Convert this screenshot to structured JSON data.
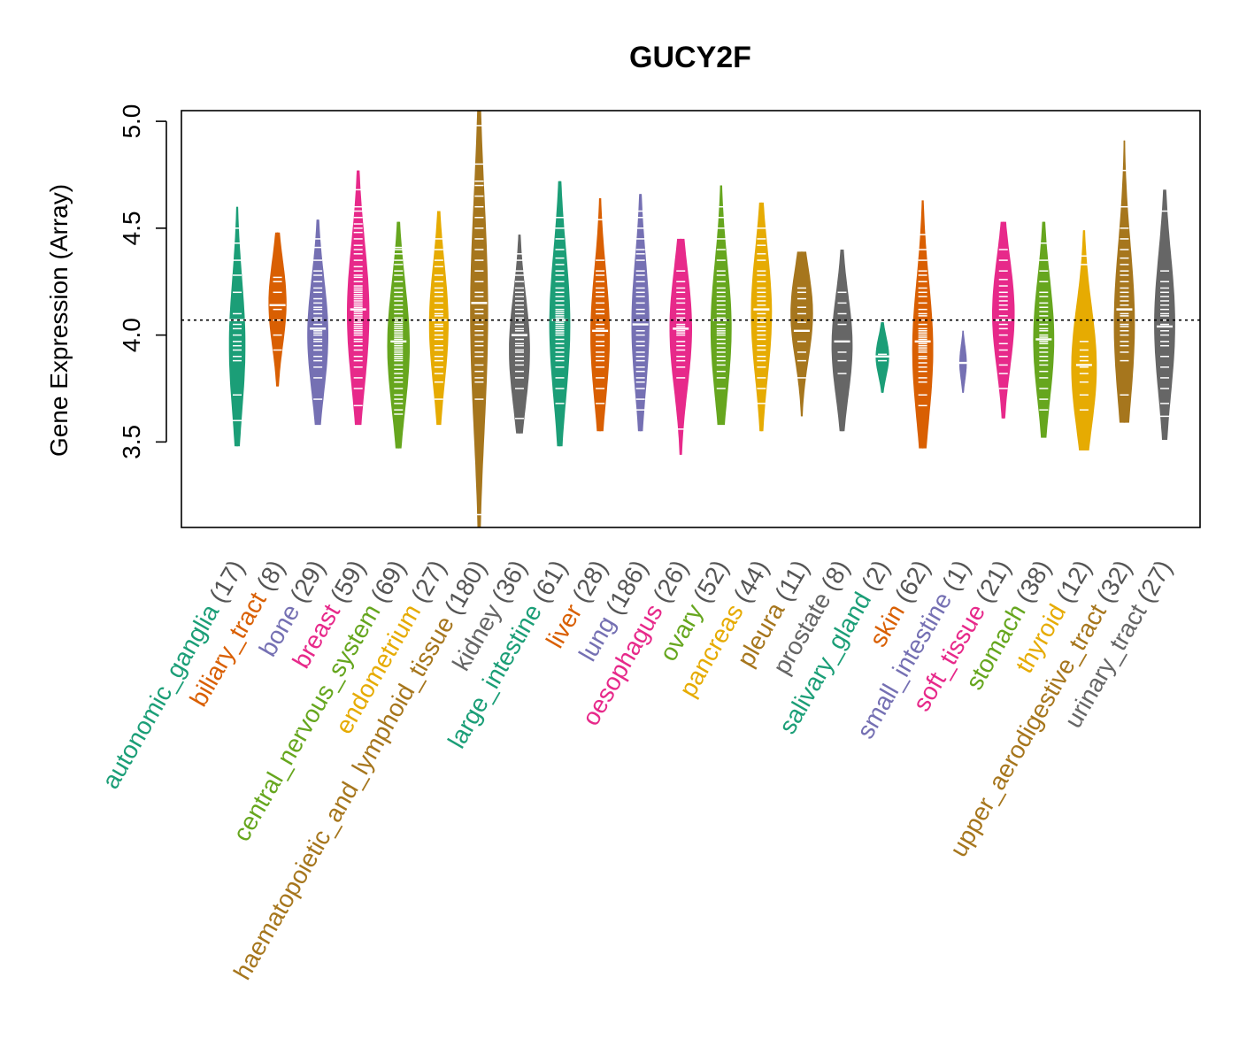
{
  "chart_data": {
    "type": "beanplot",
    "title": "GUCY2F",
    "ylabel": "Gene Expression (Array)",
    "xlabel": "",
    "ylim": [
      3.1,
      5.05
    ],
    "yticks": [
      3.5,
      4.0,
      4.5,
      5.0
    ],
    "ytick_labels": [
      "3.5",
      "4.0",
      "4.5",
      "5.0"
    ],
    "reference_line": 4.07,
    "grid": false,
    "series": [
      {
        "name": "autonomic_ganglia",
        "n": 17,
        "label_count": "(17)",
        "color": "#1B9E77",
        "min": 3.48,
        "max": 4.6,
        "median": 4.07,
        "mode": 3.95,
        "width": 0.55,
        "points": [
          3.6,
          3.72,
          3.88,
          3.9,
          3.93,
          3.95,
          3.97,
          4.0,
          4.03,
          4.05,
          4.07,
          4.1,
          4.2,
          4.28,
          4.35,
          4.43,
          4.5
        ]
      },
      {
        "name": "biliary_tract",
        "n": 8,
        "label_count": "(8)",
        "color": "#D95F02",
        "min": 3.76,
        "max": 4.48,
        "median": 4.14,
        "mode": 4.15,
        "width": 0.6,
        "points": [
          3.93,
          4.0,
          4.07,
          4.12,
          4.14,
          4.2,
          4.25,
          4.27
        ]
      },
      {
        "name": "bone",
        "n": 29,
        "label_count": "(29)",
        "color": "#7570B3",
        "min": 3.58,
        "max": 4.54,
        "median": 4.03,
        "mode": 4.0,
        "width": 0.7,
        "points": [
          3.7,
          3.8,
          3.85,
          3.88,
          3.9,
          3.93,
          3.95,
          3.97,
          3.98,
          4.0,
          4.01,
          4.02,
          4.03,
          4.05,
          4.07,
          4.08,
          4.1,
          4.12,
          4.13,
          4.15,
          4.17,
          4.2,
          4.22,
          4.25,
          4.28,
          4.3,
          4.35,
          4.41,
          4.45
        ]
      },
      {
        "name": "breast",
        "n": 59,
        "label_count": "(59)",
        "color": "#E7298A",
        "min": 3.58,
        "max": 4.77,
        "median": 4.12,
        "mode": 4.1,
        "width": 0.75,
        "points": [
          3.67,
          3.75,
          3.8,
          3.85,
          3.88,
          3.9,
          3.93,
          3.95,
          3.97,
          3.98,
          4.0,
          4.01,
          4.02,
          4.03,
          4.04,
          4.05,
          4.06,
          4.07,
          4.08,
          4.09,
          4.1,
          4.11,
          4.12,
          4.13,
          4.14,
          4.15,
          4.16,
          4.17,
          4.18,
          4.19,
          4.2,
          4.21,
          4.22,
          4.23,
          4.25,
          4.27,
          4.28,
          4.3,
          4.32,
          4.35,
          4.38,
          4.4,
          4.42,
          4.45,
          4.48,
          4.5,
          4.52,
          4.55,
          4.58,
          4.6,
          4.68
        ]
      },
      {
        "name": "central_nervous_system",
        "n": 69,
        "label_count": "(69)",
        "color": "#66A61E",
        "min": 3.47,
        "max": 4.53,
        "median": 3.97,
        "mode": 3.95,
        "width": 0.75,
        "points": [
          3.63,
          3.65,
          3.68,
          3.7,
          3.72,
          3.75,
          3.78,
          3.8,
          3.82,
          3.84,
          3.86,
          3.88,
          3.89,
          3.9,
          3.91,
          3.92,
          3.93,
          3.94,
          3.95,
          3.96,
          3.97,
          3.98,
          3.99,
          4.0,
          4.01,
          4.02,
          4.03,
          4.04,
          4.05,
          4.06,
          4.07,
          4.08,
          4.1,
          4.12,
          4.14,
          4.16,
          4.18,
          4.2,
          4.22,
          4.25,
          4.28,
          4.3,
          4.33,
          4.35,
          4.38,
          4.4,
          4.41
        ]
      },
      {
        "name": "endometrium",
        "n": 27,
        "label_count": "(27)",
        "color": "#E6AB02",
        "min": 3.58,
        "max": 4.58,
        "median": 4.07,
        "mode": 4.05,
        "width": 0.65,
        "points": [
          3.7,
          3.78,
          3.82,
          3.85,
          3.88,
          3.9,
          3.93,
          3.95,
          3.98,
          4.0,
          4.02,
          4.04,
          4.05,
          4.07,
          4.09,
          4.1,
          4.12,
          4.15,
          4.18,
          4.2,
          4.22,
          4.25,
          4.28,
          4.32,
          4.35,
          4.4,
          4.45
        ]
      },
      {
        "name": "haematopoietic_and_lymphoid_tissue",
        "n": 180,
        "label_count": "(180)",
        "color": "#A6761D",
        "min": 3.1,
        "max": 5.05,
        "median": 4.15,
        "mode": 4.1,
        "width": 0.6,
        "points": [
          3.16,
          3.7,
          3.78,
          3.8,
          3.83,
          3.86,
          3.9,
          3.92,
          3.95,
          3.97,
          4.0,
          4.02,
          4.05,
          4.07,
          4.1,
          4.12,
          4.15,
          4.18,
          4.2,
          4.25,
          4.3,
          4.35,
          4.4,
          4.45,
          4.5,
          4.55,
          4.6,
          4.65,
          4.7,
          4.72,
          4.8,
          4.98
        ]
      },
      {
        "name": "kidney",
        "n": 36,
        "label_count": "(36)",
        "color": "#666666",
        "min": 3.54,
        "max": 4.47,
        "median": 4.0,
        "mode": 3.93,
        "width": 0.7,
        "points": [
          3.61,
          3.75,
          3.8,
          3.83,
          3.86,
          3.88,
          3.9,
          3.92,
          3.93,
          3.95,
          3.96,
          3.98,
          4.0,
          4.02,
          4.03,
          4.05,
          4.07,
          4.08,
          4.1,
          4.12,
          4.14,
          4.16,
          4.18,
          4.2,
          4.22,
          4.25,
          4.28,
          4.3,
          4.35,
          4.38
        ]
      },
      {
        "name": "large_intestine",
        "n": 61,
        "label_count": "(61)",
        "color": "#1B9E77",
        "min": 3.48,
        "max": 4.72,
        "median": 4.07,
        "mode": 4.05,
        "width": 0.7,
        "points": [
          3.68,
          3.75,
          3.8,
          3.85,
          3.88,
          3.9,
          3.92,
          3.94,
          3.96,
          3.98,
          4.0,
          4.01,
          4.02,
          4.03,
          4.04,
          4.05,
          4.06,
          4.07,
          4.08,
          4.09,
          4.1,
          4.11,
          4.12,
          4.14,
          4.16,
          4.18,
          4.2,
          4.22,
          4.25,
          4.28,
          4.3,
          4.33,
          4.36,
          4.4,
          4.45,
          4.5,
          4.55
        ]
      },
      {
        "name": "liver",
        "n": 28,
        "label_count": "(28)",
        "color": "#D95F02",
        "min": 3.55,
        "max": 4.64,
        "median": 4.02,
        "mode": 4.0,
        "width": 0.65,
        "points": [
          3.68,
          3.75,
          3.8,
          3.85,
          3.88,
          3.9,
          3.92,
          3.95,
          3.97,
          4.0,
          4.02,
          4.03,
          4.05,
          4.07,
          4.1,
          4.12,
          4.15,
          4.18,
          4.2,
          4.22,
          4.25,
          4.28,
          4.3,
          4.35,
          4.54
        ]
      },
      {
        "name": "lung",
        "n": 186,
        "label_count": "(186)",
        "color": "#7570B3",
        "min": 3.55,
        "max": 4.66,
        "median": 4.05,
        "mode": 4.05,
        "width": 0.6,
        "points": [
          3.65,
          3.7,
          3.75,
          3.78,
          3.8,
          3.83,
          3.85,
          3.88,
          3.9,
          3.92,
          3.95,
          3.97,
          4.0,
          4.02,
          4.05,
          4.07,
          4.1,
          4.12,
          4.15,
          4.18,
          4.2,
          4.22,
          4.25,
          4.28,
          4.3,
          4.35,
          4.38,
          4.4,
          4.45,
          4.5,
          4.55,
          4.58
        ]
      },
      {
        "name": "oesophagus",
        "n": 26,
        "label_count": "(26)",
        "color": "#E7298A",
        "min": 3.44,
        "max": 4.45,
        "median": 4.03,
        "mode": 4.03,
        "width": 0.75,
        "points": [
          3.56,
          3.8,
          3.85,
          3.88,
          3.9,
          3.93,
          3.95,
          3.97,
          4.0,
          4.01,
          4.02,
          4.03,
          4.04,
          4.05,
          4.07,
          4.08,
          4.1,
          4.12,
          4.15,
          4.17,
          4.2,
          4.22,
          4.25,
          4.3
        ]
      },
      {
        "name": "ovary",
        "n": 52,
        "label_count": "(52)",
        "color": "#66A61E",
        "min": 3.58,
        "max": 4.7,
        "median": 4.07,
        "mode": 4.03,
        "width": 0.7,
        "points": [
          3.75,
          3.8,
          3.83,
          3.86,
          3.88,
          3.9,
          3.92,
          3.94,
          3.96,
          3.98,
          4.0,
          4.01,
          4.02,
          4.03,
          4.05,
          4.07,
          4.08,
          4.1,
          4.12,
          4.14,
          4.16,
          4.18,
          4.2,
          4.22,
          4.25,
          4.28,
          4.3,
          4.35,
          4.4,
          4.45,
          4.5,
          4.55,
          4.6
        ]
      },
      {
        "name": "pancreas",
        "n": 44,
        "label_count": "(44)",
        "color": "#E6AB02",
        "min": 3.55,
        "max": 4.62,
        "median": 4.12,
        "mode": 4.1,
        "width": 0.7,
        "points": [
          3.68,
          3.75,
          3.8,
          3.85,
          3.88,
          3.9,
          3.93,
          3.95,
          3.98,
          4.0,
          4.02,
          4.04,
          4.06,
          4.08,
          4.1,
          4.12,
          4.14,
          4.16,
          4.18,
          4.2,
          4.22,
          4.25,
          4.28,
          4.3,
          4.35,
          4.38,
          4.42,
          4.45,
          4.5
        ]
      },
      {
        "name": "pleura",
        "n": 11,
        "label_count": "(11)",
        "color": "#A6761D",
        "min": 3.62,
        "max": 4.39,
        "median": 4.02,
        "mode": 4.1,
        "width": 0.75,
        "points": [
          3.8,
          3.88,
          3.92,
          3.97,
          4.02,
          4.06,
          4.1,
          4.13,
          4.17,
          4.2,
          4.22
        ]
      },
      {
        "name": "prostate",
        "n": 8,
        "label_count": "(8)",
        "color": "#666666",
        "min": 3.55,
        "max": 4.4,
        "median": 3.97,
        "mode": 3.95,
        "width": 0.7,
        "points": [
          3.82,
          3.88,
          3.92,
          3.97,
          4.05,
          4.1,
          4.15,
          4.2
        ]
      },
      {
        "name": "salivary_gland",
        "n": 2,
        "label_count": "(2)",
        "color": "#1B9E77",
        "min": 3.73,
        "max": 4.06,
        "median": 3.9,
        "mode": 3.9,
        "width": 0.45,
        "points": [
          3.88,
          3.91
        ]
      },
      {
        "name": "skin",
        "n": 62,
        "label_count": "(62)",
        "color": "#D95F02",
        "min": 3.47,
        "max": 4.63,
        "median": 3.97,
        "mode": 3.93,
        "width": 0.7,
        "points": [
          3.67,
          3.72,
          3.78,
          3.8,
          3.83,
          3.85,
          3.87,
          3.89,
          3.9,
          3.92,
          3.93,
          3.94,
          3.95,
          3.96,
          3.97,
          3.98,
          3.99,
          4.0,
          4.01,
          4.02,
          4.03,
          4.05,
          4.07,
          4.09,
          4.1,
          4.12,
          4.15,
          4.18,
          4.2,
          4.22,
          4.25,
          4.28,
          4.3,
          4.35,
          4.4,
          4.47
        ]
      },
      {
        "name": "small_intestine",
        "n": 1,
        "label_count": "(1)",
        "color": "#7570B3",
        "min": 3.73,
        "max": 4.02,
        "median": 3.87,
        "mode": 3.87,
        "width": 0.25,
        "points": [
          3.87
        ]
      },
      {
        "name": "soft_tissue",
        "n": 21,
        "label_count": "(21)",
        "color": "#E7298A",
        "min": 3.61,
        "max": 4.53,
        "median": 4.07,
        "mode": 4.1,
        "width": 0.75,
        "points": [
          3.75,
          3.82,
          3.86,
          3.9,
          3.93,
          3.96,
          4.0,
          4.03,
          4.05,
          4.07,
          4.09,
          4.12,
          4.14,
          4.16,
          4.18,
          4.2,
          4.23,
          4.26,
          4.3,
          4.35,
          4.4
        ]
      },
      {
        "name": "stomach",
        "n": 38,
        "label_count": "(38)",
        "color": "#66A61E",
        "min": 3.52,
        "max": 4.53,
        "median": 3.98,
        "mode": 3.98,
        "width": 0.7,
        "points": [
          3.65,
          3.7,
          3.75,
          3.8,
          3.83,
          3.86,
          3.88,
          3.9,
          3.92,
          3.94,
          3.96,
          3.97,
          3.98,
          3.99,
          4.0,
          4.02,
          4.03,
          4.05,
          4.07,
          4.09,
          4.11,
          4.13,
          4.15,
          4.18,
          4.2,
          4.25,
          4.3,
          4.35,
          4.43
        ]
      },
      {
        "name": "thyroid",
        "n": 12,
        "label_count": "(12)",
        "color": "#E6AB02",
        "min": 3.46,
        "max": 4.49,
        "median": 3.86,
        "mode": 3.85,
        "width": 0.85,
        "points": [
          3.65,
          3.72,
          3.78,
          3.82,
          3.85,
          3.86,
          3.88,
          3.9,
          3.93,
          3.97,
          4.33,
          4.37
        ]
      },
      {
        "name": "upper_aerodigestive_tract",
        "n": 32,
        "label_count": "(32)",
        "color": "#A6761D",
        "min": 3.59,
        "max": 4.91,
        "median": 4.12,
        "mode": 4.05,
        "width": 0.7,
        "points": [
          3.72,
          3.88,
          3.92,
          3.95,
          3.97,
          4.0,
          4.02,
          4.04,
          4.05,
          4.07,
          4.09,
          4.1,
          4.12,
          4.14,
          4.16,
          4.18,
          4.2,
          4.22,
          4.25,
          4.28,
          4.3,
          4.33,
          4.36,
          4.4,
          4.45,
          4.5,
          4.6,
          4.77
        ]
      },
      {
        "name": "urinary_tract",
        "n": 27,
        "label_count": "(27)",
        "color": "#666666",
        "min": 3.51,
        "max": 4.68,
        "median": 4.04,
        "mode": 4.05,
        "width": 0.7,
        "points": [
          3.62,
          3.68,
          3.75,
          3.8,
          3.85,
          3.9,
          3.95,
          3.97,
          4.0,
          4.02,
          4.04,
          4.05,
          4.07,
          4.09,
          4.1,
          4.12,
          4.14,
          4.16,
          4.18,
          4.2,
          4.22,
          4.25,
          4.3,
          4.58
        ]
      }
    ]
  }
}
